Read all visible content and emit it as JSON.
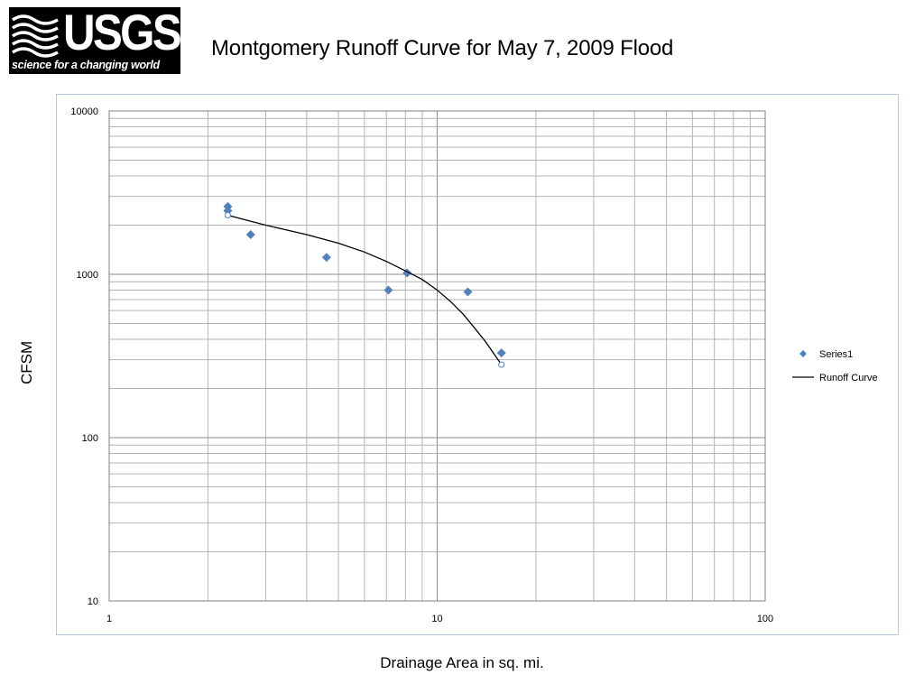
{
  "logo": {
    "text": "USGS",
    "tagline": "science for a changing world"
  },
  "title": "Montgomery Runoff Curve for May 7, 2009 Flood",
  "chart_data": {
    "type": "scatter",
    "title": "",
    "xlabel": "Drainage Area in sq. mi.",
    "ylabel": "CFSM",
    "x_scale": "log",
    "y_scale": "log",
    "xlim": [
      1,
      100
    ],
    "ylim": [
      10,
      10000
    ],
    "x_tick_labels": [
      "1",
      "10",
      "100"
    ],
    "y_tick_labels": [
      "10",
      "100",
      "1000",
      "10000"
    ],
    "grid": true,
    "legend_position": "right",
    "series": [
      {
        "name": "Series1",
        "kind": "points",
        "marker": "diamond",
        "color": "#4f81bd",
        "x": [
          2.3,
          2.3,
          2.7,
          4.6,
          7.1,
          8.1,
          12.4,
          15.7
        ],
        "y": [
          2600,
          2450,
          1750,
          1270,
          800,
          1020,
          780,
          330
        ]
      },
      {
        "name": "Runoff Curve",
        "kind": "line",
        "color": "#000000",
        "x": [
          2.3,
          3.0,
          4.0,
          5.0,
          6.0,
          7.0,
          8.0,
          9.0,
          10.0,
          11.0,
          12.0,
          13.0,
          14.0,
          15.0,
          15.7
        ],
        "y": [
          2300,
          2000,
          1750,
          1550,
          1370,
          1200,
          1050,
          930,
          800,
          680,
          570,
          470,
          390,
          320,
          280
        ],
        "endpoint_markers": "open-circle"
      }
    ]
  }
}
